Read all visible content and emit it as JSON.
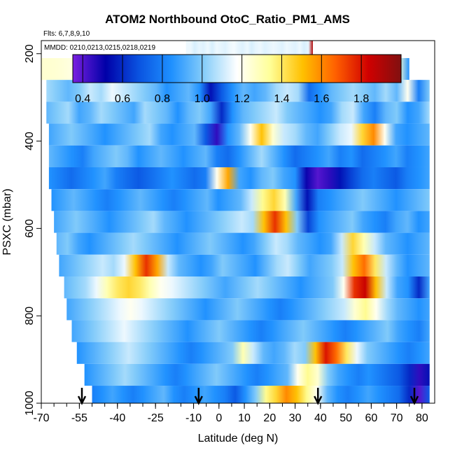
{
  "chart_data": {
    "type": "heatmap",
    "title": "ATOM2 Northbound OtoC_Ratio_PM1_AMS",
    "flights_label": "Flts: 6,7,8,9,10",
    "dates_label": "MMDD: 0210,0213,0215,0218,0219",
    "xlabel": "Latitude (deg N)",
    "ylabel": "PSXC (mbar)",
    "xlim": [
      -70,
      85
    ],
    "ylim": [
      1000,
      170
    ],
    "x_ticks": [
      -70,
      -55,
      -40,
      -25,
      -10,
      0,
      10,
      20,
      30,
      40,
      50,
      60,
      70,
      80
    ],
    "x_minor_step": 5,
    "y_ticks": [
      200,
      400,
      600,
      800,
      1000
    ],
    "colorbar": {
      "range": [
        0.35,
        2.0
      ],
      "ticks": [
        0.4,
        0.6,
        0.8,
        1.0,
        1.2,
        1.4,
        1.6,
        1.8
      ],
      "colors": [
        "#7a1fe0",
        "#0000a8",
        "#0a52e0",
        "#1e90ff",
        "#87cefa",
        "#ffffff",
        "#ffff99",
        "#ffc000",
        "#ff6000",
        "#d00000",
        "#801010"
      ]
    },
    "arrows_lat": [
      -54,
      -8,
      39,
      77
    ],
    "bands": [
      {
        "p": [
          170,
          210
        ],
        "lat": [
          -13,
          37
        ],
        "ratio": [
          1.15,
          1.15,
          1.12,
          1.14,
          1.13,
          1.15,
          1.12,
          1.15,
          1.14,
          1.13,
          1.15,
          1.16,
          1.14,
          1.13,
          1.15,
          1.12,
          1.14,
          1.15,
          1.13,
          1.14,
          1.15,
          1.14,
          1.13,
          1.15,
          1.14,
          1.13,
          1.15,
          1.12,
          1.14,
          1.9
        ]
      },
      {
        "p": [
          210,
          260
        ],
        "lat": [
          -70,
          75
        ],
        "ratio": [
          1.25,
          1.25,
          1.24,
          1.22,
          1.18,
          1.1,
          0.95,
          0.6,
          0.45,
          0.6,
          0.95,
          1.1,
          1.05,
          0.75,
          0.7,
          1.0,
          0.85,
          0.9,
          0.8,
          0.95,
          1.0,
          1.05,
          1.1,
          0.95,
          1.55,
          1.45,
          1.35,
          1.3,
          1.25,
          1.2,
          1.15,
          1.25,
          1.3,
          1.35,
          1.25,
          0.85
        ]
      },
      {
        "p": [
          260,
          310
        ],
        "lat": [
          -68,
          83
        ],
        "ratio": [
          1.05,
          1.0,
          0.95,
          1.0,
          1.1,
          1.05,
          1.15,
          1.1,
          1.05,
          1.0,
          0.95,
          0.85,
          0.9,
          0.95,
          0.85,
          0.55,
          0.7,
          0.85,
          0.95,
          0.9,
          0.95,
          1.05,
          1.1,
          1.05,
          0.75,
          0.85,
          0.95,
          1.0,
          1.05,
          1.0,
          0.95,
          1.05,
          0.95,
          1.2,
          0.8,
          1.0
        ]
      },
      {
        "p": [
          310,
          360
        ],
        "lat": [
          -68,
          83
        ],
        "ratio": [
          0.95,
          1.0,
          1.05,
          0.9,
          0.95,
          1.05,
          1.0,
          0.95,
          0.9,
          1.05,
          1.0,
          0.95,
          0.85,
          0.95,
          1.0,
          0.9,
          0.6,
          0.85,
          0.95,
          1.0,
          1.05,
          1.1,
          1.0,
          0.95,
          0.9,
          0.85,
          0.9,
          1.05,
          1.1,
          0.9,
          0.8,
          0.95,
          1.0,
          0.85,
          0.9,
          1.05
        ]
      },
      {
        "p": [
          360,
          410
        ],
        "lat": [
          -67,
          83
        ],
        "ratio": [
          0.9,
          0.95,
          1.0,
          0.95,
          0.9,
          0.85,
          0.9,
          0.95,
          1.0,
          1.05,
          0.9,
          0.85,
          0.9,
          0.95,
          0.7,
          0.45,
          0.85,
          0.95,
          1.2,
          1.5,
          1.25,
          1.1,
          1.05,
          0.95,
          0.9,
          1.0,
          1.1,
          1.15,
          1.45,
          1.6,
          1.2,
          0.9,
          0.85,
          0.9,
          0.95
        ]
      },
      {
        "p": [
          410,
          460
        ],
        "lat": [
          -67,
          83
        ],
        "ratio": [
          0.95,
          0.9,
          0.85,
          0.8,
          0.9,
          0.95,
          1.0,
          0.95,
          0.85,
          0.9,
          0.95,
          0.9,
          0.85,
          0.9,
          0.95,
          0.8,
          0.75,
          0.85,
          0.95,
          1.05,
          0.95,
          0.85,
          0.75,
          0.8,
          0.85,
          0.9,
          0.8,
          0.85,
          0.75,
          0.8,
          0.85,
          0.9,
          0.8,
          0.85,
          0.9
        ]
      },
      {
        "p": [
          460,
          510
        ],
        "lat": [
          -67,
          83
        ],
        "ratio": [
          0.85,
          0.8,
          0.75,
          0.8,
          0.85,
          0.9,
          0.8,
          0.75,
          0.7,
          0.75,
          0.8,
          0.85,
          0.8,
          0.75,
          0.8,
          1.2,
          1.55,
          0.9,
          0.85,
          0.95,
          1.0,
          0.9,
          0.85,
          0.5,
          0.4,
          0.45,
          0.55,
          0.65,
          0.75,
          0.8,
          0.75,
          0.7,
          0.8,
          0.85,
          0.9
        ]
      },
      {
        "p": [
          510,
          560
        ],
        "lat": [
          -66,
          83
        ],
        "ratio": [
          0.85,
          0.9,
          0.95,
          0.9,
          0.85,
          0.8,
          0.85,
          0.9,
          0.95,
          0.9,
          0.85,
          0.8,
          0.85,
          0.9,
          0.95,
          0.85,
          0.9,
          0.95,
          1.1,
          1.35,
          1.45,
          1.3,
          0.9,
          0.55,
          0.8,
          0.85,
          0.9,
          0.95,
          1.0,
          0.95,
          0.9,
          0.85,
          0.9,
          0.95,
          1.0
        ]
      },
      {
        "p": [
          560,
          610
        ],
        "lat": [
          -65,
          83
        ],
        "ratio": [
          0.9,
          0.95,
          1.0,
          0.95,
          0.9,
          0.85,
          0.9,
          0.95,
          1.0,
          1.05,
          0.95,
          0.9,
          0.85,
          0.9,
          0.95,
          1.0,
          1.05,
          1.1,
          1.05,
          1.5,
          1.75,
          1.5,
          1.0,
          0.65,
          0.85,
          0.9,
          0.95,
          1.0,
          0.9,
          0.85,
          0.8,
          0.9,
          0.95,
          0.85,
          0.9
        ]
      },
      {
        "p": [
          610,
          660
        ],
        "lat": [
          -64,
          83
        ],
        "ratio": [
          0.95,
          1.0,
          0.9,
          0.85,
          0.9,
          0.95,
          1.0,
          1.05,
          1.0,
          0.95,
          0.9,
          0.85,
          0.9,
          0.95,
          1.0,
          0.95,
          0.9,
          0.85,
          0.9,
          1.0,
          1.1,
          1.05,
          0.95,
          0.9,
          0.85,
          0.9,
          1.1,
          1.45,
          1.3,
          1.1,
          0.95,
          0.9,
          0.85,
          0.9,
          0.95
        ]
      },
      {
        "p": [
          660,
          710
        ],
        "lat": [
          -63,
          83
        ],
        "ratio": [
          0.9,
          0.95,
          1.0,
          1.05,
          1.1,
          1.05,
          1.15,
          1.5,
          1.75,
          1.55,
          1.1,
          0.95,
          0.9,
          0.85,
          0.9,
          1.0,
          0.95,
          0.9,
          0.85,
          0.95,
          1.05,
          1.1,
          1.0,
          0.9,
          0.95,
          1.0,
          1.1,
          1.5,
          1.65,
          1.4,
          1.1,
          0.95,
          0.85,
          0.9,
          0.95
        ]
      },
      {
        "p": [
          710,
          760
        ],
        "lat": [
          -61,
          83
        ],
        "ratio": [
          0.95,
          1.0,
          1.05,
          1.15,
          1.3,
          1.4,
          1.45,
          1.4,
          1.3,
          1.2,
          1.15,
          1.1,
          1.05,
          1.0,
          0.95,
          0.9,
          0.95,
          1.0,
          1.05,
          1.0,
          0.95,
          0.9,
          0.85,
          0.9,
          0.95,
          1.0,
          1.2,
          1.75,
          1.85,
          1.5,
          1.1,
          0.9,
          0.85,
          0.6,
          0.9
        ]
      },
      {
        "p": [
          760,
          810
        ],
        "lat": [
          -60,
          83
        ],
        "ratio": [
          0.9,
          0.95,
          1.0,
          1.05,
          1.1,
          1.15,
          1.2,
          1.15,
          1.1,
          1.05,
          1.0,
          0.95,
          0.9,
          0.85,
          0.9,
          0.95,
          1.0,
          0.95,
          0.9,
          0.85,
          0.8,
          0.85,
          0.9,
          0.95,
          1.0,
          1.05,
          1.1,
          1.25,
          1.35,
          1.2,
          1.05,
          0.95,
          0.9,
          0.85,
          0.9
        ]
      },
      {
        "p": [
          810,
          860
        ],
        "lat": [
          -58,
          83
        ],
        "ratio": [
          0.9,
          0.95,
          1.0,
          1.05,
          1.1,
          1.15,
          1.1,
          1.05,
          1.0,
          0.95,
          0.9,
          0.85,
          0.9,
          0.95,
          1.0,
          0.95,
          0.9,
          0.85,
          0.8,
          0.85,
          0.9,
          0.95,
          1.0,
          0.95,
          0.9,
          0.85,
          0.8,
          0.85,
          0.9,
          0.95,
          1.0,
          0.9,
          0.85,
          0.8,
          0.9
        ]
      },
      {
        "p": [
          860,
          910
        ],
        "lat": [
          -56,
          83
        ],
        "ratio": [
          0.85,
          0.9,
          0.95,
          1.0,
          1.05,
          1.1,
          1.05,
          1.0,
          0.95,
          0.9,
          0.85,
          0.8,
          0.85,
          0.9,
          0.95,
          1.0,
          1.3,
          1.1,
          0.95,
          0.9,
          0.95,
          1.05,
          1.0,
          1.5,
          1.8,
          1.65,
          1.4,
          1.15,
          1.0,
          0.95,
          0.9,
          0.85,
          0.8,
          0.85,
          0.9
        ]
      },
      {
        "p": [
          910,
          960
        ],
        "lat": [
          -53,
          83
        ],
        "ratio": [
          0.85,
          0.9,
          0.95,
          1.0,
          1.05,
          1.0,
          0.95,
          0.9,
          0.85,
          0.8,
          0.85,
          0.9,
          0.95,
          1.0,
          0.95,
          0.9,
          0.85,
          0.8,
          0.85,
          0.9,
          0.95,
          1.2,
          1.35,
          1.25,
          1.0,
          0.9,
          0.85,
          0.8,
          0.85,
          0.8,
          0.75,
          0.7,
          0.6,
          0.45,
          0.55
        ]
      },
      {
        "p": [
          960,
          1000
        ],
        "lat": [
          -50,
          83
        ],
        "ratio": [
          0.8,
          0.85,
          0.9,
          0.85,
          0.8,
          0.85,
          0.9,
          0.95,
          0.85,
          0.8,
          0.85,
          0.9,
          0.85,
          0.8,
          0.7,
          0.85,
          1.0,
          1.35,
          1.45,
          1.6,
          1.5,
          1.35,
          1.2,
          0.95,
          0.85,
          0.8,
          0.85,
          0.9,
          0.85,
          0.8,
          0.75,
          0.6,
          0.4,
          0.7
        ]
      }
    ]
  }
}
